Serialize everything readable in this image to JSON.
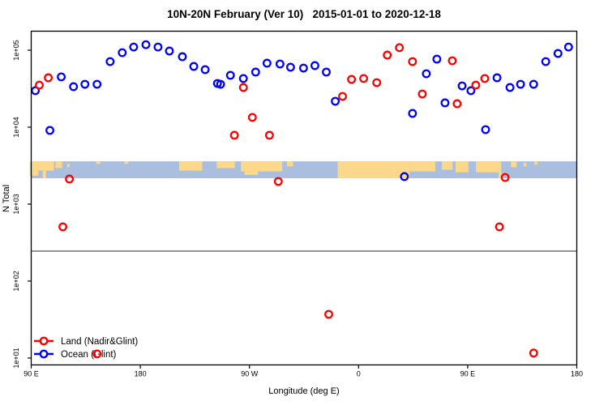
{
  "chart_data": {
    "type": "scatter",
    "title": "10N-20N February (Ver 10)   2015-01-01 to 2020-12-18",
    "xlabel": "Longitude (deg E)",
    "ylabel": "N Total",
    "x_axis": {
      "range_deg": [
        90,
        540
      ],
      "major_ticks_deg": [
        90,
        180,
        270,
        360,
        450,
        540
      ],
      "tick_labels": [
        "90 E",
        "180",
        "90 W",
        "0",
        "90 E",
        "180"
      ]
    },
    "y_axis": {
      "scale": "log10",
      "tick_values": [
        10,
        100,
        1000,
        10000,
        100000
      ],
      "tick_labels": [
        "1e+01",
        "1e+02",
        "1e+03",
        "1e+04",
        "1e+05"
      ],
      "range": [
        7,
        180000
      ]
    },
    "reference_line": {
      "n_value": 245,
      "color": "#555555"
    },
    "map_band": {
      "n_top": 3600,
      "n_bottom": 2170,
      "ocean_color": "#aabfdf",
      "land_color": "#fbd88a",
      "land_patches": [
        {
          "lon": [
            88.7,
            108.8
          ],
          "v": [
            0,
            0.55
          ]
        },
        {
          "lon": [
            88.7,
            96.0
          ],
          "v": [
            0.55,
            0.85
          ]
        },
        {
          "lon": [
            99.5,
            102.2
          ],
          "v": [
            0.55,
            1.0
          ]
        },
        {
          "lon": [
            110.0,
            115.5
          ],
          "v": [
            0,
            0.4
          ]
        },
        {
          "lon": [
            119.5,
            121.5
          ],
          "v": [
            0.15,
            0.35
          ]
        },
        {
          "lon": [
            143.6,
            147.0
          ],
          "v": [
            0,
            0.15
          ]
        },
        {
          "lon": [
            167.0,
            170.0
          ],
          "v": [
            0,
            0.15
          ]
        },
        {
          "lon": [
            212.0,
            231.0
          ],
          "v": [
            0,
            0.55
          ]
        },
        {
          "lon": [
            243.0,
            258.0
          ],
          "v": [
            0,
            0.4
          ]
        },
        {
          "lon": [
            263.0,
            297.0
          ],
          "v": [
            0,
            0.6
          ]
        },
        {
          "lon": [
            266.0,
            277.0
          ],
          "v": [
            0.6,
            0.8
          ]
        },
        {
          "lon": [
            301.0,
            306.0
          ],
          "v": [
            0,
            0.3
          ]
        },
        {
          "lon": [
            342.8,
            402.0
          ],
          "v": [
            0,
            1.0
          ]
        },
        {
          "lon": [
            402.0,
            423.3
          ],
          "v": [
            0,
            0.6
          ]
        },
        {
          "lon": [
            428.7,
            437.5
          ],
          "v": [
            0,
            0.5
          ]
        },
        {
          "lon": [
            440.0,
            450.6
          ],
          "v": [
            0,
            0.65
          ]
        },
        {
          "lon": [
            456.8,
            477.6
          ],
          "v": [
            0,
            0.65
          ]
        },
        {
          "lon": [
            475.5,
            478.2
          ],
          "v": [
            0.65,
            1.0
          ]
        },
        {
          "lon": [
            485.7,
            490.4
          ],
          "v": [
            0,
            0.35
          ]
        },
        {
          "lon": [
            496.0,
            498.5
          ],
          "v": [
            0.1,
            0.3
          ]
        },
        {
          "lon": [
            505.0,
            507.5
          ],
          "v": [
            0,
            0.2
          ]
        }
      ]
    },
    "legend": {
      "items": [
        {
          "label": "Land (Nadir&Glint)",
          "color": "#ff0000",
          "series": "land"
        },
        {
          "label": "Ocean (Glint)",
          "color": "#0000ff",
          "series": "ocean"
        }
      ]
    },
    "series": [
      {
        "name": "Land (Nadir&Glint)",
        "color": "#ff0000",
        "points": [
          [
            96.7,
            35200
          ],
          [
            104.1,
            43900
          ],
          [
            265.0,
            32800
          ],
          [
            346.8,
            25100
          ],
          [
            354.2,
            41800
          ],
          [
            364.2,
            42900
          ],
          [
            375.0,
            37900
          ],
          [
            383.7,
            86500
          ],
          [
            393.7,
            108000
          ],
          [
            272.4,
            13400
          ],
          [
            257.6,
            7850
          ],
          [
            286.5,
            7850
          ],
          [
            404.5,
            71200
          ],
          [
            437.3,
            72900
          ],
          [
            412.6,
            27000
          ],
          [
            441.3,
            20200
          ],
          [
            456.7,
            35200
          ],
          [
            464.1,
            42900
          ],
          [
            121.5,
            2120
          ],
          [
            293.8,
            1970
          ],
          [
            480.9,
            2220
          ],
          [
            116.1,
            507
          ],
          [
            476.2,
            507
          ],
          [
            335.4,
            37
          ],
          [
            504.4,
            11.6
          ],
          [
            144.3,
            11.3
          ]
        ]
      },
      {
        "name": "Ocean (Glint)",
        "color": "#0000ff",
        "points": [
          [
            93.4,
            29800
          ],
          [
            114.8,
            45000
          ],
          [
            124.9,
            33600
          ],
          [
            134.3,
            36100
          ],
          [
            144.3,
            36100
          ],
          [
            155.1,
            71200
          ],
          [
            165.1,
            92900
          ],
          [
            174.5,
            110000
          ],
          [
            184.6,
            118000
          ],
          [
            194.6,
            110000
          ],
          [
            204.0,
            97600
          ],
          [
            214.7,
            82400
          ],
          [
            224.1,
            61600
          ],
          [
            233.5,
            55900
          ],
          [
            243.6,
            37000
          ],
          [
            105.4,
            9080
          ],
          [
            246.2,
            36100
          ],
          [
            254.3,
            47200
          ],
          [
            265.0,
            42900
          ],
          [
            275.1,
            52000
          ],
          [
            284.5,
            67900
          ],
          [
            295.2,
            66200
          ],
          [
            303.9,
            60100
          ],
          [
            314.6,
            58600
          ],
          [
            324.0,
            63100
          ],
          [
            333.4,
            52000
          ],
          [
            340.8,
            21700
          ],
          [
            415.9,
            49500
          ],
          [
            424.6,
            76600
          ],
          [
            431.3,
            20700
          ],
          [
            445.4,
            34400
          ],
          [
            452.7,
            29800
          ],
          [
            474.2,
            43900
          ],
          [
            484.9,
            32800
          ],
          [
            493.6,
            36100
          ],
          [
            504.4,
            36100
          ],
          [
            404.5,
            15100
          ],
          [
            464.8,
            9290
          ],
          [
            514.4,
            71200
          ],
          [
            524.5,
            90800
          ],
          [
            533.2,
            110000
          ],
          [
            397.8,
            2280
          ]
        ]
      }
    ]
  }
}
